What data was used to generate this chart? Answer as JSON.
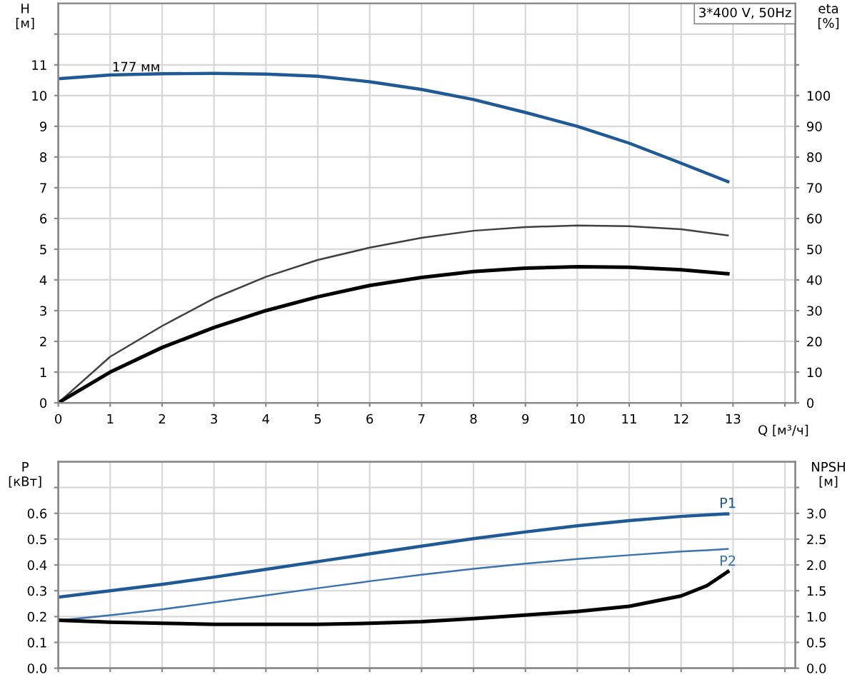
{
  "chart_data": [
    {
      "type": "line",
      "ylabel": "H\n[м]",
      "y2label": "eta\n[%]",
      "xlabel": "Q [м³/ч]",
      "x": [
        0,
        1,
        2,
        3,
        4,
        5,
        6,
        7,
        8,
        9,
        10,
        11,
        12,
        12.9
      ],
      "xlim": [
        0,
        14.2
      ],
      "xticks": [
        0,
        1,
        2,
        3,
        4,
        5,
        6,
        7,
        8,
        9,
        10,
        11,
        12,
        13,
        {
          "value": 14,
          "label": null
        }
      ],
      "ylim": [
        0,
        13
      ],
      "yticks": [
        0,
        1,
        2,
        3,
        4,
        5,
        6,
        7,
        8,
        9,
        10,
        11,
        {
          "value": 12,
          "label": null
        }
      ],
      "y2lim": [
        0,
        130
      ],
      "y2ticks": [
        0,
        10,
        20,
        30,
        40,
        50,
        60,
        70,
        80,
        90,
        100,
        {
          "value": 110,
          "label": null
        }
      ],
      "grid": true,
      "marker": "none",
      "line_style": "solid",
      "series": [
        {
          "color": "#1f5a96",
          "values": [
            10.55,
            10.67,
            10.71,
            10.72,
            10.7,
            10.63,
            10.45,
            10.2,
            9.87,
            9.45,
            9.0,
            8.45,
            7.8,
            7.2
          ]
        },
        {
          "color": "#404040",
          "axis": "y2",
          "values": [
            0,
            15,
            25,
            34,
            41,
            46.5,
            50.5,
            53.7,
            56,
            57.2,
            57.7,
            57.5,
            56.5,
            54.5
          ]
        },
        {
          "color": "#000000",
          "axis": "y2",
          "values": [
            0,
            10,
            18,
            24.5,
            30,
            34.5,
            38.2,
            40.8,
            42.7,
            43.8,
            44.3,
            44.1,
            43.3,
            42
          ]
        }
      ],
      "annotations": [
        {
          "text": "177 мм",
          "x": 1.5,
          "y": 10.7
        },
        "3*400 V, 50Hz"
      ]
    },
    {
      "type": "line",
      "ylabel": "P\n[кВт]",
      "y2label": "NPSH\n[м]",
      "x": [
        0,
        1,
        2,
        3,
        4,
        5,
        6,
        7,
        8,
        9,
        10,
        11,
        12,
        12.5,
        12.9
      ],
      "xlim": [
        0,
        14.2
      ],
      "xticks": [
        0,
        1,
        2,
        3,
        4,
        5,
        6,
        7,
        8,
        9,
        10,
        11,
        12,
        13,
        {
          "value": 14,
          "label": null
        }
      ],
      "ylim": [
        0,
        0.8
      ],
      "yticks": [
        {
          "value": 0,
          "label": "0.0"
        },
        0.1,
        0.2,
        0.3,
        0.4,
        0.5,
        0.6,
        {
          "value": 0.7,
          "label": null
        }
      ],
      "y2lim": [
        0,
        4
      ],
      "y2ticks": [
        {
          "value": 0,
          "label": "0.0"
        },
        0.5,
        {
          "value": 1,
          "label": "1.0"
        },
        1.5,
        {
          "value": 2,
          "label": "2.0"
        },
        2.5,
        {
          "value": 3,
          "label": "3.0"
        },
        {
          "value": 3.5,
          "label": null
        }
      ],
      "grid": true,
      "marker": "none",
      "line_style": "solid",
      "tick_labels": "y",
      "series": [
        {
          "name": "P1",
          "color": "#1f5a96",
          "values": [
            0.275,
            0.3,
            0.325,
            0.353,
            0.383,
            0.413,
            0.443,
            0.473,
            0.502,
            0.528,
            0.552,
            0.572,
            0.588,
            0.594,
            0.598
          ]
        },
        {
          "name": "P2",
          "color": "#3a73b0",
          "values": [
            0.185,
            0.205,
            0.228,
            0.255,
            0.282,
            0.31,
            0.337,
            0.362,
            0.385,
            0.405,
            0.423,
            0.438,
            0.452,
            0.457,
            0.462
          ]
        },
        {
          "color": "#000000",
          "axis": "y2",
          "values": [
            0.93,
            0.89,
            0.87,
            0.85,
            0.85,
            0.85,
            0.87,
            0.9,
            0.96,
            1.03,
            1.1,
            1.2,
            1.4,
            1.6,
            1.87
          ]
        }
      ]
    }
  ]
}
